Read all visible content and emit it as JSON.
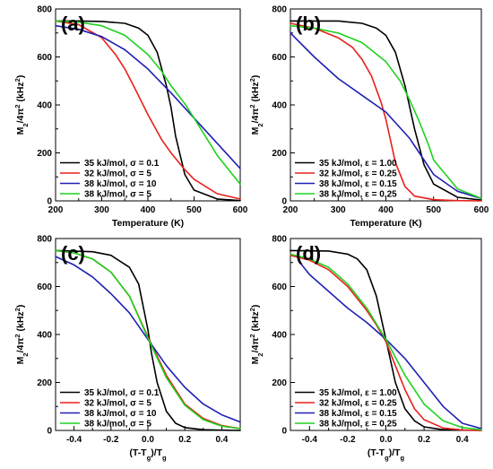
{
  "chart_data": [
    {
      "type": "line",
      "panel_label": "(a)",
      "xlabel": "Temperature (K)",
      "ylabel": "M₂/4π² (kHz²)",
      "xlim": [
        200,
        600
      ],
      "ylim": [
        0,
        800
      ],
      "xticks": [
        "200",
        "300",
        "400",
        "500",
        "600"
      ],
      "yticks": [
        "0",
        "200",
        "400",
        "600",
        "800"
      ],
      "legend_position": "bottom-left",
      "series": [
        {
          "name": "35 kJ/mol, σ = 0.1",
          "color": "#000000",
          "x": [
            200,
            250,
            300,
            350,
            380,
            400,
            420,
            440,
            450,
            460,
            480,
            500,
            550,
            600
          ],
          "y": [
            750,
            750,
            748,
            740,
            720,
            690,
            620,
            480,
            390,
            270,
            110,
            45,
            8,
            1
          ]
        },
        {
          "name": "32 kJ/mol, σ = 5",
          "color": "#e8201a",
          "x": [
            200,
            250,
            300,
            330,
            350,
            370,
            400,
            430,
            450,
            480,
            500,
            550,
            600
          ],
          "y": [
            750,
            735,
            680,
            610,
            550,
            475,
            360,
            255,
            200,
            130,
            90,
            30,
            8
          ]
        },
        {
          "name": "38 kJ/mol, σ = 10",
          "color": "#1f1fb4",
          "x": [
            200,
            250,
            300,
            350,
            400,
            450,
            500,
            550,
            600
          ],
          "y": [
            730,
            715,
            685,
            630,
            550,
            450,
            345,
            240,
            135
          ]
        },
        {
          "name": "38 kJ/mol, σ = 5",
          "color": "#1ed21e",
          "x": [
            200,
            250,
            300,
            350,
            400,
            430,
            450,
            480,
            500,
            550,
            600
          ],
          "y": [
            750,
            745,
            730,
            690,
            610,
            540,
            480,
            405,
            345,
            190,
            70
          ]
        }
      ]
    },
    {
      "type": "line",
      "panel_label": "(b)",
      "xlabel": "Temperature (K)",
      "ylabel": "M₂/4π² (kHz²)",
      "xlim": [
        200,
        600
      ],
      "ylim": [
        0,
        800
      ],
      "xticks": [
        "200",
        "300",
        "400",
        "500",
        "600"
      ],
      "yticks": [
        "0",
        "200",
        "400",
        "600",
        "800"
      ],
      "legend_position": "bottom-left",
      "series": [
        {
          "name": "35 kJ/mol, ε = 1.00",
          "color": "#000000",
          "x": [
            200,
            250,
            300,
            350,
            380,
            400,
            420,
            440,
            460,
            480,
            500,
            550,
            600
          ],
          "y": [
            750,
            750,
            750,
            740,
            720,
            690,
            620,
            480,
            300,
            150,
            70,
            15,
            3
          ]
        },
        {
          "name": "32 kJ/mol, ε = 0.25",
          "color": "#e8201a",
          "x": [
            200,
            250,
            300,
            330,
            350,
            370,
            390,
            400,
            410,
            420,
            440,
            460,
            500,
            550,
            600
          ],
          "y": [
            740,
            720,
            680,
            640,
            590,
            520,
            410,
            340,
            250,
            160,
            60,
            20,
            5,
            1,
            0
          ]
        },
        {
          "name": "38 kJ/mol, ε = 0.15",
          "color": "#1f1fb4",
          "x": [
            200,
            250,
            300,
            350,
            400,
            450,
            470,
            500,
            550,
            600
          ],
          "y": [
            700,
            600,
            510,
            440,
            370,
            260,
            200,
            110,
            40,
            10
          ]
        },
        {
          "name": "38 kJ/mol, ε = 0.25",
          "color": "#1ed21e",
          "x": [
            200,
            250,
            300,
            350,
            400,
            430,
            450,
            470,
            490,
            500,
            550,
            600
          ],
          "y": [
            730,
            720,
            700,
            660,
            580,
            500,
            420,
            330,
            230,
            170,
            50,
            10
          ]
        }
      ]
    },
    {
      "type": "line",
      "panel_label": "(c)",
      "xlabel": "(T-Tg)/Tg",
      "ylabel": "M₂/4π² (kHz²)",
      "xlim": [
        -0.5,
        0.5
      ],
      "ylim": [
        0,
        800
      ],
      "xticks": [
        "-0.4",
        "-0.2",
        "0.0",
        "0.2",
        "0.4"
      ],
      "yticks": [
        "0",
        "200",
        "400",
        "600",
        "800"
      ],
      "legend_position": "bottom-left",
      "series": [
        {
          "name": "35 kJ/mol, σ = 0.1",
          "color": "#000000",
          "x": [
            -0.5,
            -0.3,
            -0.2,
            -0.1,
            -0.05,
            0,
            0.02,
            0.05,
            0.1,
            0.15,
            0.2,
            0.3,
            0.4,
            0.5
          ],
          "y": [
            750,
            745,
            730,
            680,
            610,
            420,
            320,
            200,
            80,
            30,
            12,
            3,
            1,
            0
          ]
        },
        {
          "name": "32 kJ/mol, σ = 5",
          "color": "#e8201a",
          "x": [
            -0.5,
            -0.4,
            -0.3,
            -0.2,
            -0.1,
            0,
            0.1,
            0.2,
            0.3,
            0.4,
            0.5
          ],
          "y": [
            750,
            740,
            715,
            660,
            560,
            390,
            230,
            110,
            50,
            20,
            8
          ]
        },
        {
          "name": "38 kJ/mol, σ = 10",
          "color": "#1f1fb4",
          "x": [
            -0.5,
            -0.4,
            -0.3,
            -0.2,
            -0.1,
            0,
            0.1,
            0.2,
            0.3,
            0.4,
            0.5
          ],
          "y": [
            725,
            690,
            640,
            570,
            490,
            380,
            270,
            180,
            110,
            65,
            35
          ]
        },
        {
          "name": "38 kJ/mol, σ = 5",
          "color": "#1ed21e",
          "x": [
            -0.5,
            -0.4,
            -0.3,
            -0.2,
            -0.1,
            0,
            0.1,
            0.2,
            0.3,
            0.4,
            0.5
          ],
          "y": [
            750,
            740,
            715,
            660,
            560,
            385,
            220,
            105,
            45,
            18,
            7
          ]
        }
      ]
    },
    {
      "type": "line",
      "panel_label": "(d)",
      "xlabel": "(T-Tg)/Tg",
      "ylabel": "M₂/4π² (kHz²)",
      "xlim": [
        -0.5,
        0.5
      ],
      "ylim": [
        0,
        800
      ],
      "xticks": [
        "-0.4",
        "-0.2",
        "0.0",
        "0.2",
        "0.4"
      ],
      "yticks": [
        "0",
        "200",
        "400",
        "600",
        "800"
      ],
      "legend_position": "bottom-left",
      "series": [
        {
          "name": "35 kJ/mol, ε = 1.00",
          "color": "#000000",
          "x": [
            -0.5,
            -0.3,
            -0.2,
            -0.15,
            -0.1,
            -0.05,
            0,
            0.05,
            0.1,
            0.15,
            0.2,
            0.3,
            0.4,
            0.5
          ],
          "y": [
            750,
            748,
            735,
            715,
            670,
            560,
            380,
            200,
            90,
            40,
            15,
            3,
            1,
            0
          ]
        },
        {
          "name": "32 kJ/mol, ε = 0.25",
          "color": "#e8201a",
          "x": [
            -0.5,
            -0.4,
            -0.3,
            -0.2,
            -0.1,
            -0.05,
            0,
            0.05,
            0.1,
            0.15,
            0.2,
            0.3,
            0.4,
            0.5
          ],
          "y": [
            730,
            710,
            670,
            600,
            500,
            440,
            370,
            270,
            170,
            90,
            45,
            10,
            2,
            0
          ]
        },
        {
          "name": "38 kJ/mol, ε = 0.15",
          "color": "#1f1fb4",
          "x": [
            -0.45,
            -0.4,
            -0.3,
            -0.2,
            -0.1,
            0,
            0.1,
            0.2,
            0.3,
            0.4,
            0.5
          ],
          "y": [
            700,
            650,
            580,
            510,
            450,
            380,
            300,
            200,
            100,
            30,
            8
          ]
        },
        {
          "name": "38 kJ/mol, ε = 0.25",
          "color": "#1ed21e",
          "x": [
            -0.5,
            -0.4,
            -0.3,
            -0.2,
            -0.1,
            0,
            0.1,
            0.2,
            0.3,
            0.4,
            0.5
          ],
          "y": [
            735,
            715,
            680,
            610,
            510,
            380,
            230,
            110,
            40,
            12,
            3
          ]
        }
      ]
    }
  ]
}
